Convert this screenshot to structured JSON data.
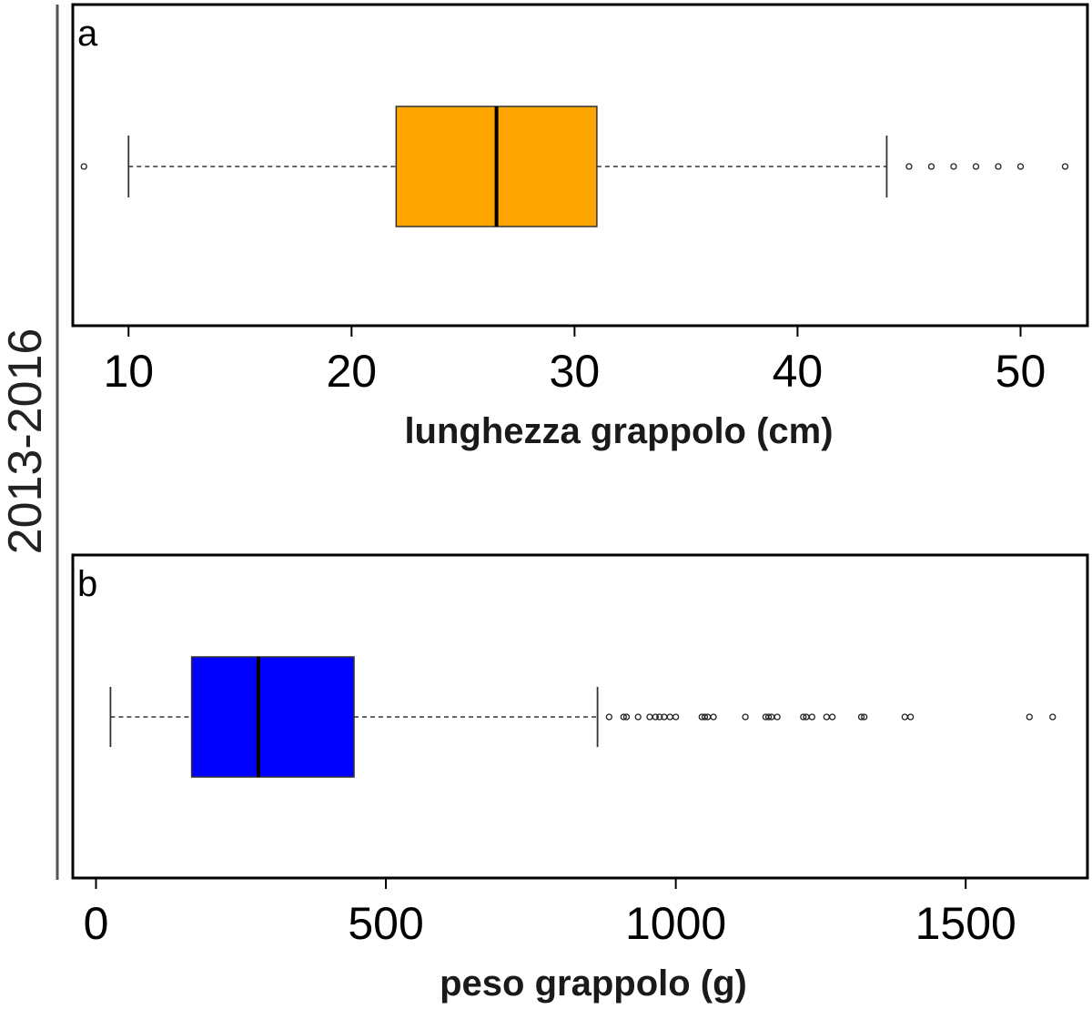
{
  "side_label": "2013-2016",
  "colors": {
    "panel_a_box": "#ffa500",
    "panel_b_box": "#0000ff"
  },
  "chart_data": [
    {
      "type": "boxplot",
      "panel_label": "a",
      "xlabel": "lunghezza grappolo (cm)",
      "xlim": [
        7.5,
        53
      ],
      "ticks": [
        10,
        20,
        30,
        40,
        50
      ],
      "grid": false,
      "box": {
        "whisker_low": 10,
        "q1": 22,
        "median": 26.5,
        "q3": 31,
        "whisker_high": 44
      },
      "outliers": [
        8,
        45,
        46,
        47,
        48,
        49,
        50,
        52
      ]
    },
    {
      "type": "boxplot",
      "panel_label": "b",
      "xlabel": "peso grappolo (g)",
      "xlim": [
        -40,
        1710
      ],
      "ticks": [
        0,
        500,
        1000,
        1500
      ],
      "grid": false,
      "box": {
        "whisker_low": 25,
        "q1": 165,
        "median": 280,
        "q3": 445,
        "whisker_high": 865
      },
      "outliers": [
        885,
        910,
        915,
        935,
        955,
        965,
        972,
        980,
        990,
        1000,
        1045,
        1050,
        1055,
        1065,
        1120,
        1155,
        1160,
        1165,
        1175,
        1220,
        1225,
        1235,
        1260,
        1270,
        1320,
        1325,
        1395,
        1405,
        1610,
        1650
      ]
    }
  ]
}
